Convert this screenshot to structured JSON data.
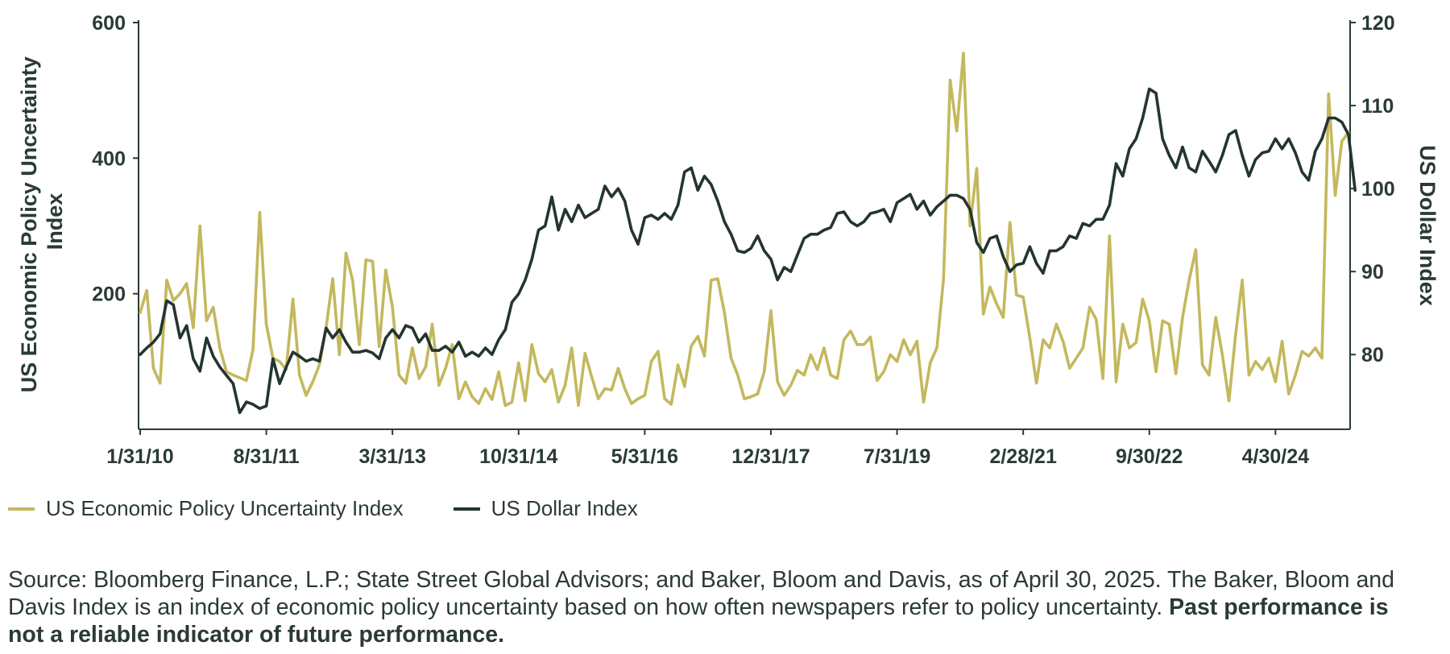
{
  "chart_data": {
    "type": "line",
    "title": "",
    "ylabel_left": "US Economic Policy Uncertainty Index",
    "ylabel_right": "US Dollar Index",
    "ylim_left": [
      0,
      600
    ],
    "ylim_right": [
      71,
      120
    ],
    "yticks_left": [
      "600",
      "400",
      "200"
    ],
    "yticks_right": [
      "120",
      "110",
      "100",
      "90",
      "80"
    ],
    "x_tick_labels": [
      "1/31/10",
      "8/31/11",
      "3/31/13",
      "10/31/14",
      "5/31/16",
      "12/31/17",
      "7/31/19",
      "2/28/21",
      "9/30/22",
      "4/30/24"
    ],
    "x_start": "2010-01-31",
    "legend_position": "bottom-left",
    "grid": false,
    "series": [
      {
        "name": "US Economic Policy Uncertainty Index",
        "axis": "left",
        "color": "#c4b85e",
        "values": [
          172,
          205,
          90,
          68,
          220,
          190,
          200,
          215,
          150,
          300,
          160,
          180,
          120,
          85,
          80,
          76,
          72,
          118,
          320,
          155,
          105,
          100,
          88,
          192,
          80,
          50,
          70,
          95,
          150,
          222,
          110,
          260,
          220,
          125,
          250,
          248,
          122,
          235,
          180,
          80,
          68,
          120,
          75,
          92,
          155,
          65,
          90,
          125,
          45,
          70,
          48,
          38,
          60,
          44,
          85,
          35,
          40,
          98,
          42,
          125,
          82,
          70,
          88,
          40,
          65,
          120,
          35,
          112,
          78,
          45,
          60,
          58,
          90,
          60,
          38,
          45,
          50,
          100,
          115,
          45,
          37,
          95,
          63,
          123,
          137,
          108,
          220,
          222,
          172,
          105,
          80,
          45,
          48,
          52,
          85,
          175,
          70,
          50,
          65,
          87,
          80,
          110,
          88,
          120,
          80,
          75,
          132,
          145,
          125,
          125,
          136,
          72,
          85,
          110,
          100,
          132,
          110,
          130,
          40,
          98,
          120,
          222,
          515,
          440,
          555,
          300,
          385,
          170,
          210,
          185,
          165,
          305,
          198,
          195,
          135,
          68,
          132,
          120,
          155,
          130,
          90,
          105,
          120,
          180,
          162,
          75,
          285,
          70,
          155,
          120,
          128,
          192,
          160,
          85,
          160,
          155,
          82,
          165,
          220,
          265,
          95,
          80,
          165,
          110,
          42,
          140,
          220,
          80,
          100,
          88,
          105,
          70,
          130,
          52,
          80,
          115,
          108,
          120,
          105,
          495,
          345,
          425,
          438
        ]
      },
      {
        "name": "US Dollar Index",
        "axis": "right",
        "color": "#243530",
        "values": [
          80.0,
          80.8,
          81.5,
          82.5,
          86.5,
          86.0,
          82.0,
          83.5,
          79.5,
          78.0,
          82.0,
          79.8,
          78.5,
          77.5,
          76.5,
          73.0,
          74.3,
          74.0,
          73.5,
          73.8,
          79.5,
          76.5,
          78.5,
          80.3,
          79.8,
          79.2,
          79.5,
          79.2,
          83.2,
          82.0,
          83.0,
          81.5,
          80.3,
          80.3,
          80.5,
          80.2,
          79.5,
          82.0,
          83.0,
          82.0,
          83.5,
          83.2,
          81.5,
          82.5,
          80.5,
          80.5,
          81.0,
          80.3,
          81.5,
          79.8,
          80.3,
          79.8,
          80.8,
          80.0,
          81.8,
          83.0,
          86.3,
          87.3,
          89.0,
          91.5,
          95.0,
          95.5,
          99.0,
          95.0,
          97.5,
          96.0,
          98.0,
          96.5,
          97.0,
          97.5,
          100.3,
          99.0,
          100.0,
          98.5,
          95.0,
          93.3,
          96.5,
          96.8,
          96.3,
          97.0,
          96.3,
          98.0,
          102.0,
          102.5,
          99.8,
          101.5,
          100.5,
          98.5,
          96.0,
          94.5,
          92.5,
          92.3,
          92.8,
          94.3,
          92.5,
          91.5,
          89.0,
          90.5,
          90.0,
          92.0,
          94.0,
          94.5,
          94.5,
          95.0,
          95.3,
          97.0,
          97.2,
          96.0,
          95.5,
          96.0,
          97.0,
          97.2,
          97.5,
          96.0,
          98.3,
          98.8,
          99.3,
          97.5,
          98.5,
          96.8,
          97.8,
          98.5,
          99.2,
          99.2,
          98.8,
          97.5,
          93.5,
          92.3,
          94.0,
          94.3,
          91.8,
          90.0,
          90.8,
          91.0,
          93.0,
          91.0,
          89.8,
          92.5,
          92.5,
          93.0,
          94.3,
          94.0,
          95.8,
          95.5,
          96.3,
          96.3,
          98.0,
          103.0,
          101.5,
          104.8,
          106.0,
          108.5,
          112.0,
          111.5,
          106.0,
          104.0,
          102.5,
          105.0,
          102.5,
          102.0,
          104.5,
          103.3,
          102.0,
          104.0,
          106.5,
          107.0,
          104.0,
          101.5,
          103.5,
          104.3,
          104.5,
          106.0,
          104.8,
          106.0,
          104.3,
          102.0,
          101.0,
          104.5,
          106.0,
          108.5,
          108.5,
          108.0,
          106.5,
          99.8
        ]
      }
    ]
  },
  "legend": {
    "items": [
      {
        "label": "US Economic Policy Uncertainty Index",
        "color": "#c4b85e"
      },
      {
        "label": "US Dollar Index",
        "color": "#243530"
      }
    ]
  },
  "source": {
    "text": "Source: Bloomberg Finance, L.P.; State Street Global Advisors; and Baker, Bloom and Davis, as of April 30, 2025. The Baker, Bloom and Davis Index is an index of economic policy uncertainty based on how often newspapers refer to policy uncertainty. ",
    "bold": "Past performance is not a reliable indicator of future performance."
  }
}
